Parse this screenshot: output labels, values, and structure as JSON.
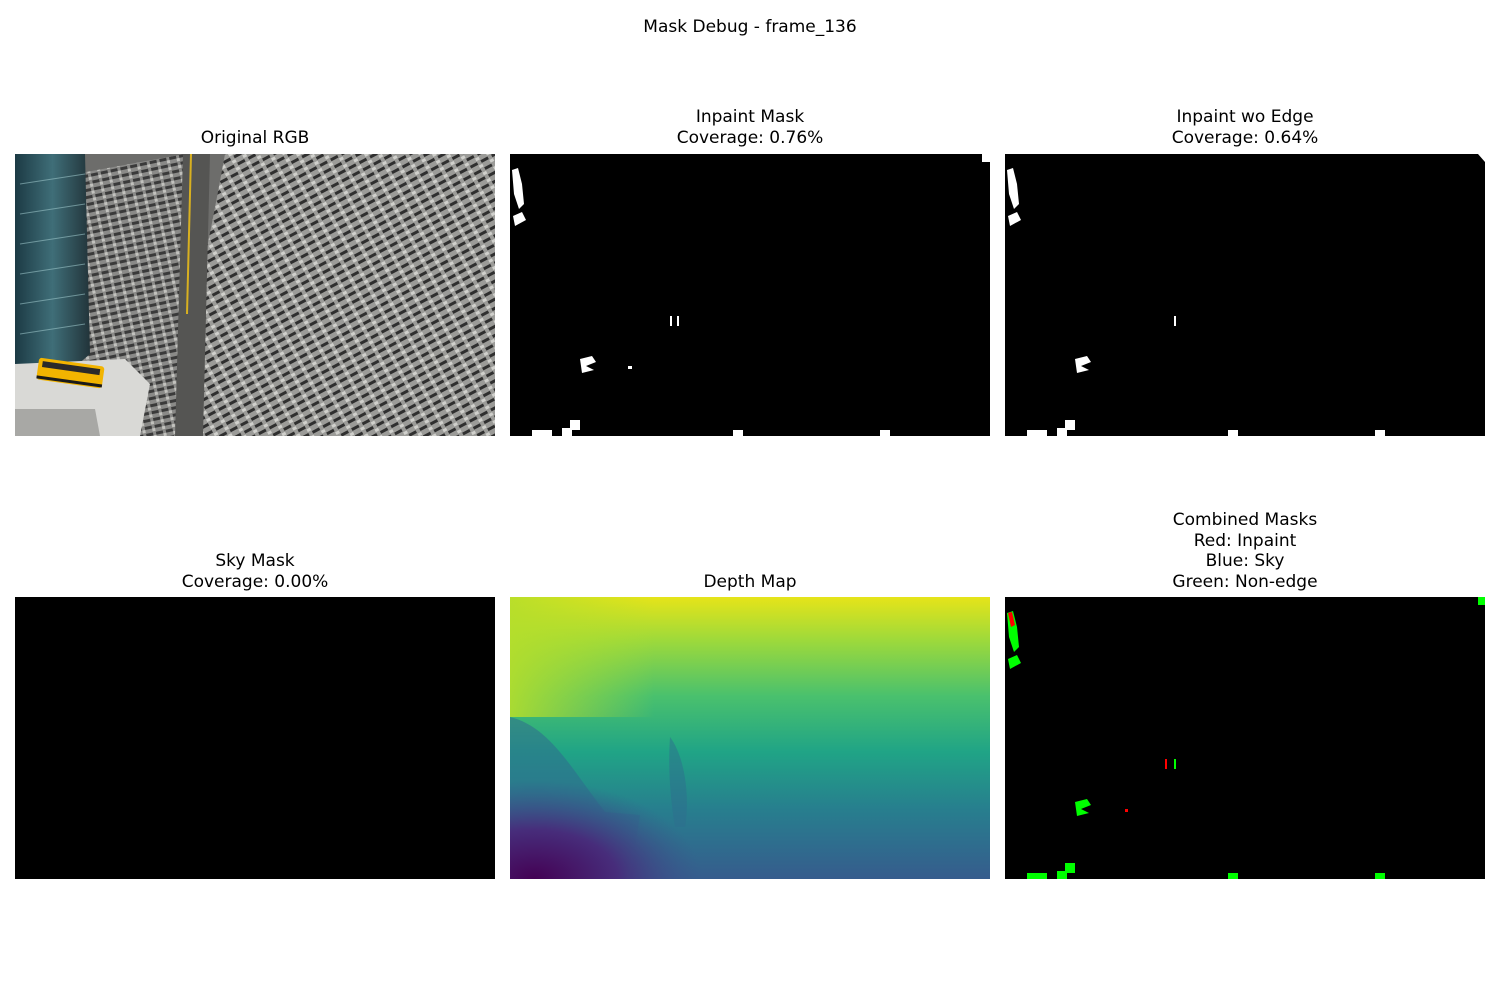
{
  "figure": {
    "suptitle": "Mask Debug - frame_136"
  },
  "panels": [
    {
      "id": "original-rgb",
      "title_lines": [
        "Original RGB"
      ]
    },
    {
      "id": "inpaint-mask",
      "title_lines": [
        "Inpaint Mask",
        "Coverage: 0.76%"
      ],
      "coverage_percent": 0.76
    },
    {
      "id": "inpaint-wo-edge",
      "title_lines": [
        "Inpaint wo Edge",
        "Coverage: 0.64%"
      ],
      "coverage_percent": 0.64
    },
    {
      "id": "sky-mask",
      "title_lines": [
        "Sky Mask",
        "Coverage: 0.00%"
      ],
      "coverage_percent": 0.0
    },
    {
      "id": "depth-map",
      "title_lines": [
        "Depth Map"
      ],
      "colormap": "viridis"
    },
    {
      "id": "combined-masks",
      "title_lines": [
        "Combined Masks",
        "Red: Inpaint",
        "Blue: Sky",
        "Green: Non-edge"
      ],
      "legend_colors": {
        "inpaint": "#ff0000",
        "sky": "#0000ff",
        "non_edge": "#00ff00"
      }
    }
  ],
  "colors": {
    "mask_background": "#000000",
    "mask_foreground": "#ffffff"
  }
}
